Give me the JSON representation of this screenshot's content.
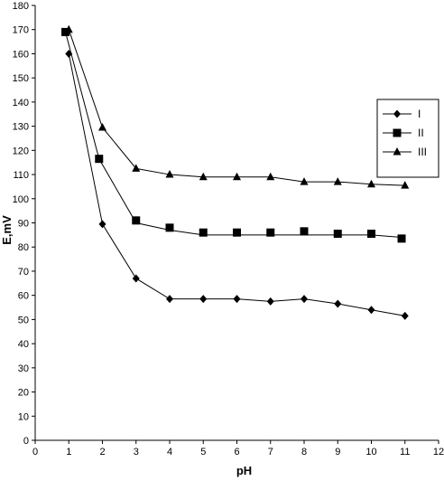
{
  "chart_data": {
    "type": "line",
    "title": "",
    "xlabel": "pH",
    "ylabel": "E,mV",
    "xlim": [
      0,
      12
    ],
    "ylim": [
      0,
      180
    ],
    "x_ticks": [
      "0",
      "1",
      "2",
      "3",
      "4",
      "5",
      "6",
      "7",
      "8",
      "9",
      "10",
      "11",
      "12"
    ],
    "y_ticks": [
      "0",
      "10",
      "20",
      "30",
      "40",
      "50",
      "60",
      "70",
      "80",
      "90",
      "100",
      "110",
      "120",
      "130",
      "140",
      "150",
      "160",
      "170",
      "180"
    ],
    "grid": false,
    "legend_position": "right",
    "series": [
      {
        "name": "I",
        "marker": "diamond",
        "x": [
          1,
          2,
          3,
          4,
          5,
          6,
          7,
          8,
          9,
          10,
          11
        ],
        "y": [
          160,
          89.5,
          67,
          58.5,
          58.5,
          58.5,
          57.5,
          58.5,
          56.5,
          54,
          51.5
        ]
      },
      {
        "name": "II",
        "marker": "square",
        "x": [
          0.9,
          1.9,
          3,
          4,
          5,
          6,
          7,
          8,
          9,
          10,
          10.9
        ],
        "y": [
          169,
          116.5,
          91,
          88,
          86,
          86,
          86,
          86.5,
          85.5,
          85.5,
          83.5
        ],
        "fit_x": [
          0.9,
          1.9,
          3,
          4,
          5,
          6,
          7,
          8,
          9,
          10,
          10.9
        ],
        "fit_y": [
          169,
          116.5,
          90,
          87,
          85,
          85,
          85,
          85,
          85,
          85,
          84
        ]
      },
      {
        "name": "III",
        "marker": "triangle",
        "x": [
          1,
          2,
          3,
          4,
          5,
          6,
          7,
          8,
          9,
          10,
          11
        ],
        "y": [
          170,
          129.5,
          112.5,
          110,
          109,
          109,
          109,
          107,
          107,
          106,
          105.5
        ]
      }
    ]
  }
}
